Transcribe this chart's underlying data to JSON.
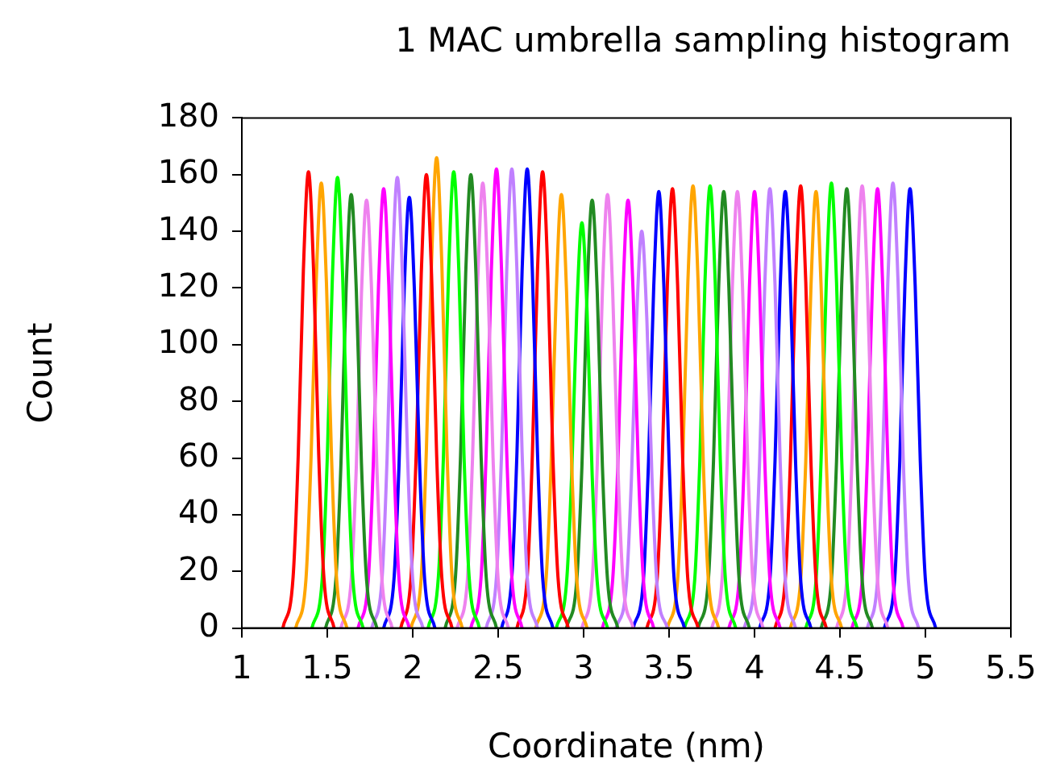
{
  "chart_data": {
    "type": "line",
    "title": "1 MAC umbrella sampling histogram",
    "xlabel": "Coordinate (nm)",
    "ylabel": "Count",
    "xlim": [
      1,
      5.5
    ],
    "xticks": [
      1,
      1.5,
      2,
      2.5,
      3,
      3.5,
      4,
      4.5,
      5,
      5.5
    ],
    "ylim": [
      0,
      180
    ],
    "yticks": [
      0,
      20,
      40,
      60,
      80,
      100,
      120,
      140,
      160,
      180
    ],
    "grid": false,
    "legend": false,
    "marker": "none",
    "line_style": "solid",
    "series": [
      {
        "color": "#ff0000",
        "x": [
          1.24,
          1.3,
          1.33,
          1.36,
          1.39,
          1.42,
          1.45,
          1.48,
          1.54
        ],
        "values": [
          0,
          18,
          61,
          126,
          161,
          126,
          61,
          18,
          0
        ]
      },
      {
        "color": "#ffa500",
        "x": [
          1.315,
          1.375,
          1.405,
          1.435,
          1.465,
          1.495,
          1.525,
          1.555,
          1.615
        ],
        "values": [
          0,
          17,
          60,
          122,
          157,
          122,
          60,
          17,
          0
        ]
      },
      {
        "color": "#00ff00",
        "x": [
          1.41,
          1.47,
          1.5,
          1.53,
          1.56,
          1.59,
          1.62,
          1.65,
          1.71
        ],
        "values": [
          0,
          17,
          60,
          124,
          159,
          124,
          60,
          17,
          0
        ]
      },
      {
        "color": "#228b22",
        "x": [
          1.49,
          1.55,
          1.58,
          1.61,
          1.64,
          1.67,
          1.7,
          1.73,
          1.79
        ],
        "values": [
          0,
          17,
          58,
          119,
          153,
          119,
          58,
          17,
          0
        ]
      },
      {
        "color": "#ee82ee",
        "x": [
          1.58,
          1.64,
          1.67,
          1.7,
          1.73,
          1.76,
          1.79,
          1.82,
          1.88
        ],
        "values": [
          0,
          17,
          57,
          118,
          151,
          118,
          57,
          17,
          0
        ]
      },
      {
        "color": "#ff00ff",
        "x": [
          1.68,
          1.74,
          1.77,
          1.8,
          1.83,
          1.86,
          1.89,
          1.92,
          1.98
        ],
        "values": [
          0,
          17,
          59,
          121,
          155,
          121,
          59,
          17,
          0
        ]
      },
      {
        "color": "#c080ff",
        "x": [
          1.76,
          1.82,
          1.85,
          1.88,
          1.91,
          1.94,
          1.97,
          2,
          2.06
        ],
        "values": [
          0,
          17,
          60,
          124,
          159,
          124,
          60,
          17,
          0
        ]
      },
      {
        "color": "#0000ff",
        "x": [
          1.83,
          1.89,
          1.92,
          1.95,
          1.98,
          2.01,
          2.04,
          2.07,
          2.13
        ],
        "values": [
          0,
          17,
          58,
          119,
          152,
          119,
          58,
          17,
          0
        ]
      },
      {
        "color": "#ff0000",
        "x": [
          1.93,
          1.99,
          2.02,
          2.05,
          2.08,
          2.11,
          2.14,
          2.17,
          2.23
        ],
        "values": [
          0,
          18,
          61,
          125,
          160,
          125,
          61,
          18,
          0
        ]
      },
      {
        "color": "#ffa500",
        "x": [
          1.99,
          2.05,
          2.08,
          2.11,
          2.14,
          2.17,
          2.2,
          2.23,
          2.29
        ],
        "values": [
          0,
          18,
          63,
          129,
          166,
          129,
          63,
          18,
          0
        ]
      },
      {
        "color": "#00ff00",
        "x": [
          2.09,
          2.15,
          2.18,
          2.21,
          2.24,
          2.27,
          2.3,
          2.33,
          2.39
        ],
        "values": [
          0,
          18,
          61,
          126,
          161,
          126,
          61,
          18,
          0
        ]
      },
      {
        "color": "#228b22",
        "x": [
          2.19,
          2.25,
          2.28,
          2.31,
          2.34,
          2.37,
          2.4,
          2.43,
          2.49
        ],
        "values": [
          0,
          18,
          61,
          125,
          160,
          125,
          61,
          18,
          0
        ]
      },
      {
        "color": "#ee82ee",
        "x": [
          2.26,
          2.32,
          2.35,
          2.38,
          2.41,
          2.44,
          2.47,
          2.5,
          2.56
        ],
        "values": [
          0,
          17,
          60,
          122,
          157,
          122,
          60,
          17,
          0
        ]
      },
      {
        "color": "#ff00ff",
        "x": [
          2.34,
          2.4,
          2.43,
          2.46,
          2.49,
          2.52,
          2.55,
          2.58,
          2.64
        ],
        "values": [
          0,
          18,
          62,
          126,
          162,
          126,
          62,
          18,
          0
        ]
      },
      {
        "color": "#c080ff",
        "x": [
          2.43,
          2.49,
          2.52,
          2.55,
          2.58,
          2.61,
          2.64,
          2.67,
          2.73
        ],
        "values": [
          0,
          18,
          62,
          126,
          162,
          126,
          62,
          18,
          0
        ]
      },
      {
        "color": "#0000ff",
        "x": [
          2.52,
          2.58,
          2.61,
          2.64,
          2.67,
          2.7,
          2.73,
          2.76,
          2.82
        ],
        "values": [
          0,
          18,
          62,
          126,
          162,
          126,
          62,
          18,
          0
        ]
      },
      {
        "color": "#ff0000",
        "x": [
          2.61,
          2.67,
          2.7,
          2.73,
          2.76,
          2.79,
          2.82,
          2.85,
          2.91
        ],
        "values": [
          0,
          18,
          61,
          126,
          161,
          126,
          61,
          18,
          0
        ]
      },
      {
        "color": "#ffa500",
        "x": [
          2.72,
          2.78,
          2.81,
          2.84,
          2.87,
          2.9,
          2.93,
          2.96,
          3.02
        ],
        "values": [
          0,
          17,
          58,
          119,
          153,
          119,
          58,
          17,
          0
        ]
      },
      {
        "color": "#00ff00",
        "x": [
          2.84,
          2.9,
          2.93,
          2.96,
          2.99,
          3.02,
          3.05,
          3.08,
          3.14
        ],
        "values": [
          0,
          16,
          54,
          112,
          143,
          112,
          54,
          16,
          0
        ]
      },
      {
        "color": "#228b22",
        "x": [
          2.9,
          2.96,
          2.99,
          3.02,
          3.05,
          3.08,
          3.11,
          3.14,
          3.2
        ],
        "values": [
          0,
          17,
          57,
          118,
          151,
          118,
          57,
          17,
          0
        ]
      },
      {
        "color": "#ee82ee",
        "x": [
          2.99,
          3.05,
          3.08,
          3.11,
          3.14,
          3.17,
          3.2,
          3.23,
          3.29
        ],
        "values": [
          0,
          17,
          58,
          119,
          153,
          119,
          58,
          17,
          0
        ]
      },
      {
        "color": "#ff00ff",
        "x": [
          3.11,
          3.17,
          3.2,
          3.23,
          3.26,
          3.29,
          3.32,
          3.35,
          3.41
        ],
        "values": [
          0,
          17,
          57,
          118,
          151,
          118,
          57,
          17,
          0
        ]
      },
      {
        "color": "#c080ff",
        "x": [
          3.19,
          3.25,
          3.28,
          3.31,
          3.34,
          3.37,
          3.4,
          3.43,
          3.49
        ],
        "values": [
          0,
          15,
          53,
          109,
          140,
          109,
          53,
          15,
          0
        ]
      },
      {
        "color": "#0000ff",
        "x": [
          3.29,
          3.35,
          3.38,
          3.41,
          3.44,
          3.47,
          3.5,
          3.53,
          3.59
        ],
        "values": [
          0,
          17,
          59,
          120,
          154,
          120,
          59,
          17,
          0
        ]
      },
      {
        "color": "#ff0000",
        "x": [
          3.37,
          3.43,
          3.46,
          3.49,
          3.52,
          3.55,
          3.58,
          3.61,
          3.67
        ],
        "values": [
          0,
          17,
          59,
          121,
          155,
          121,
          59,
          17,
          0
        ]
      },
      {
        "color": "#ffa500",
        "x": [
          3.49,
          3.55,
          3.58,
          3.61,
          3.64,
          3.67,
          3.7,
          3.73,
          3.79
        ],
        "values": [
          0,
          17,
          59,
          122,
          156,
          122,
          59,
          17,
          0
        ]
      },
      {
        "color": "#00ff00",
        "x": [
          3.59,
          3.65,
          3.68,
          3.71,
          3.74,
          3.77,
          3.8,
          3.83,
          3.89
        ],
        "values": [
          0,
          17,
          59,
          122,
          156,
          122,
          59,
          17,
          0
        ]
      },
      {
        "color": "#228b22",
        "x": [
          3.67,
          3.73,
          3.76,
          3.79,
          3.82,
          3.85,
          3.88,
          3.91,
          3.97
        ],
        "values": [
          0,
          17,
          59,
          120,
          154,
          120,
          59,
          17,
          0
        ]
      },
      {
        "color": "#ee82ee",
        "x": [
          3.75,
          3.81,
          3.84,
          3.87,
          3.9,
          3.93,
          3.96,
          3.99,
          4.05
        ],
        "values": [
          0,
          17,
          59,
          120,
          154,
          120,
          59,
          17,
          0
        ]
      },
      {
        "color": "#ff00ff",
        "x": [
          3.85,
          3.91,
          3.94,
          3.97,
          4,
          4.03,
          4.06,
          4.09,
          4.15
        ],
        "values": [
          0,
          17,
          59,
          120,
          154,
          120,
          59,
          17,
          0
        ]
      },
      {
        "color": "#c080ff",
        "x": [
          3.94,
          4,
          4.03,
          4.06,
          4.09,
          4.12,
          4.15,
          4.18,
          4.24
        ],
        "values": [
          0,
          17,
          59,
          121,
          155,
          121,
          59,
          17,
          0
        ]
      },
      {
        "color": "#0000ff",
        "x": [
          4.03,
          4.09,
          4.12,
          4.15,
          4.18,
          4.21,
          4.24,
          4.27,
          4.33
        ],
        "values": [
          0,
          17,
          59,
          120,
          154,
          120,
          59,
          17,
          0
        ]
      },
      {
        "color": "#ff0000",
        "x": [
          4.12,
          4.18,
          4.21,
          4.24,
          4.27,
          4.3,
          4.33,
          4.36,
          4.42
        ],
        "values": [
          0,
          17,
          59,
          122,
          156,
          122,
          59,
          17,
          0
        ]
      },
      {
        "color": "#ffa500",
        "x": [
          4.21,
          4.27,
          4.3,
          4.33,
          4.36,
          4.39,
          4.42,
          4.45,
          4.51
        ],
        "values": [
          0,
          17,
          59,
          120,
          154,
          120,
          59,
          17,
          0
        ]
      },
      {
        "color": "#00ff00",
        "x": [
          4.3,
          4.36,
          4.39,
          4.42,
          4.45,
          4.48,
          4.51,
          4.54,
          4.6
        ],
        "values": [
          0,
          17,
          60,
          122,
          157,
          122,
          60,
          17,
          0
        ]
      },
      {
        "color": "#228b22",
        "x": [
          4.39,
          4.45,
          4.48,
          4.51,
          4.54,
          4.57,
          4.6,
          4.63,
          4.69
        ],
        "values": [
          0,
          17,
          59,
          121,
          155,
          121,
          59,
          17,
          0
        ]
      },
      {
        "color": "#ee82ee",
        "x": [
          4.48,
          4.54,
          4.57,
          4.6,
          4.63,
          4.66,
          4.69,
          4.72,
          4.78
        ],
        "values": [
          0,
          17,
          59,
          122,
          156,
          122,
          59,
          17,
          0
        ]
      },
      {
        "color": "#ff00ff",
        "x": [
          4.57,
          4.63,
          4.66,
          4.69,
          4.72,
          4.75,
          4.78,
          4.81,
          4.87
        ],
        "values": [
          0,
          17,
          59,
          121,
          155,
          121,
          59,
          17,
          0
        ]
      },
      {
        "color": "#c080ff",
        "x": [
          4.66,
          4.72,
          4.75,
          4.78,
          4.81,
          4.84,
          4.87,
          4.9,
          4.96
        ],
        "values": [
          0,
          17,
          60,
          122,
          157,
          122,
          60,
          17,
          0
        ]
      },
      {
        "color": "#0000ff",
        "x": [
          4.76,
          4.82,
          4.85,
          4.88,
          4.91,
          4.94,
          4.97,
          5,
          5.06
        ],
        "values": [
          0,
          17,
          59,
          121,
          155,
          121,
          59,
          17,
          0
        ]
      }
    ]
  }
}
